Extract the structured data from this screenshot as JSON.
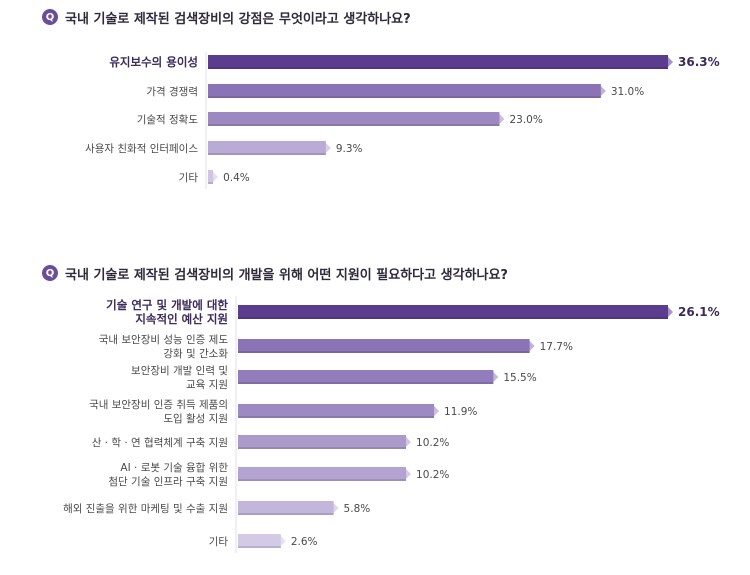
{
  "questions": [
    {
      "badge": "Q",
      "text": "국내 기술로 제작된 검색장비의 강점은 무엇이라고 생각하나요?"
    },
    {
      "badge": "Q",
      "text": "국내 기술로 제작된 검색장비의 개발을 위해 어떤 지원이 필요하다고 생각하나요?"
    }
  ],
  "chart_data": [
    {
      "type": "bar",
      "orientation": "horizontal",
      "title": "국내 기술로 제작된 검색장비의 강점은 무엇이라고 생각하나요?",
      "categories": [
        [
          "유지보수의 용이성"
        ],
        [
          "가격 경쟁력"
        ],
        [
          "기술적 정확도"
        ],
        [
          "사용자 친화적 인터페이스"
        ],
        [
          "기타"
        ]
      ],
      "values": [
        36.3,
        31.0,
        23.0,
        9.3,
        0.4
      ],
      "value_labels": [
        "36.3%",
        "31.0%",
        "23.0%",
        "9.3%",
        "0.4%"
      ],
      "highlight_index": 0,
      "colors": [
        "#5b3d8f",
        "#8b74b5",
        "#9d89c2",
        "#b9aad6",
        "#cfc6e3"
      ],
      "xlim": [
        0,
        36.3
      ]
    },
    {
      "type": "bar",
      "orientation": "horizontal",
      "title": "국내 기술로 제작된 검색장비의 개발을 위해 어떤 지원이 필요하다고 생각하나요?",
      "categories": [
        [
          "기술 연구 및 개발에 대한",
          "지속적인 예산 지원"
        ],
        [
          "국내 보안장비 성능 인증 제도",
          "강화 및 간소화"
        ],
        [
          "보안장비 개발 인력 및",
          "교육 지원"
        ],
        [
          "국내 보안장비 인증 취득 제품의",
          "도입 활성 지원"
        ],
        [
          "산 · 학 · 연 협력체계 구축 지원"
        ],
        [
          "AI · 로봇 기술 융합 위한",
          "첨단 기술 인프라 구축 지원"
        ],
        [
          "해외 진출을 위한 마케팅 및 수출 지원"
        ],
        [
          "기타"
        ]
      ],
      "values": [
        26.1,
        17.7,
        15.5,
        11.9,
        10.2,
        10.2,
        5.8,
        2.6
      ],
      "value_labels": [
        "26.1%",
        "17.7%",
        "15.5%",
        "11.9%",
        "10.2%",
        "10.2%",
        "5.8%",
        "2.6%"
      ],
      "highlight_index": 0,
      "colors": [
        "#5b3d8f",
        "#8b74b5",
        "#927cbb",
        "#9e8ac3",
        "#ab9acb",
        "#b3a3d1",
        "#c3b6dc",
        "#d3cae6"
      ],
      "xlim": [
        0,
        26.1
      ]
    }
  ]
}
